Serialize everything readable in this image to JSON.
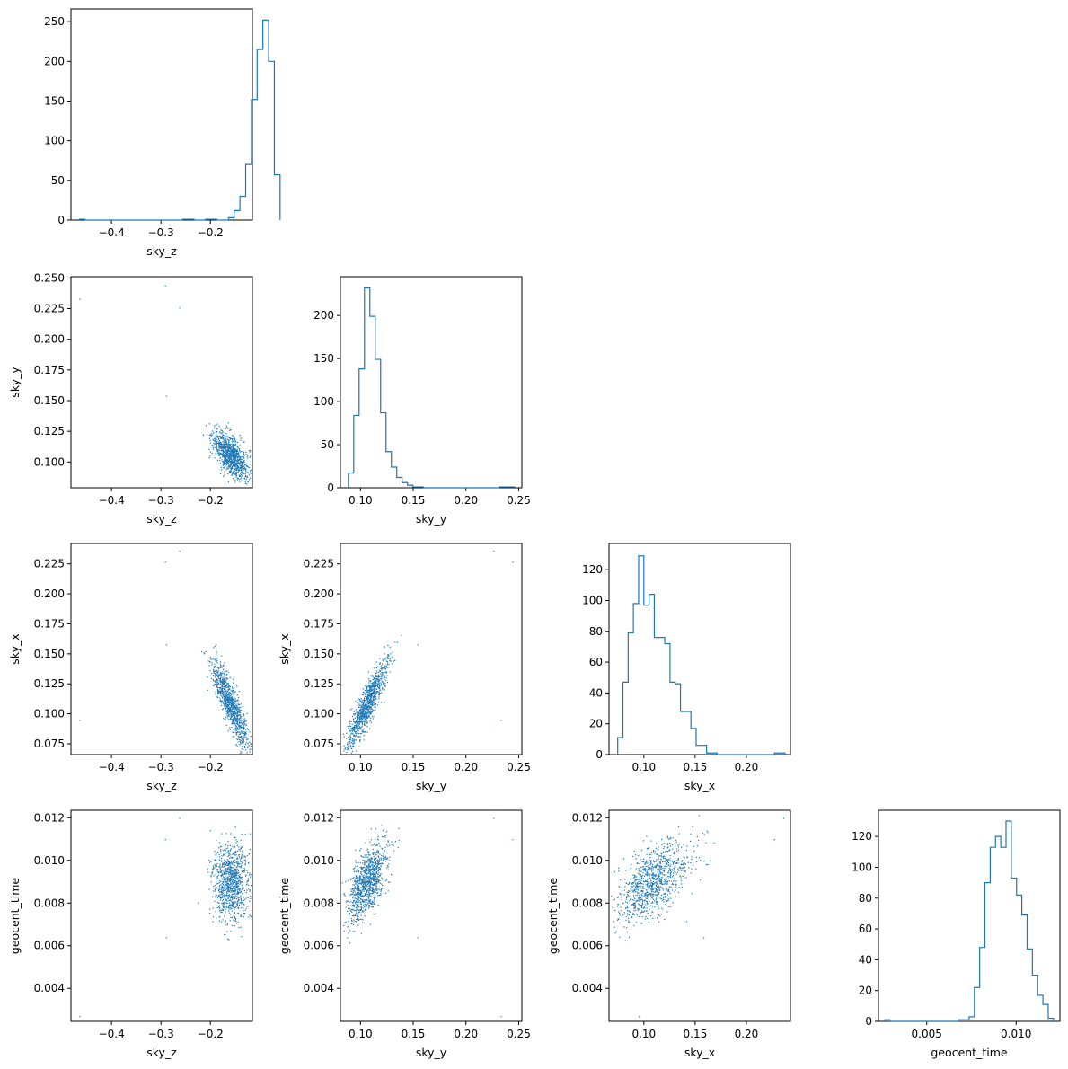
{
  "chart_data": {
    "type": "corner",
    "parameters": [
      "sky_z",
      "sky_y",
      "sky_x",
      "geocent_time"
    ],
    "colors": {
      "series": "#1f77b4"
    },
    "histograms": [
      {
        "param": "sky_z",
        "type": "histogram",
        "xlabel": "sky_z",
        "xlim": [
          -0.482,
          -0.115
        ],
        "ylim": [
          0,
          266
        ],
        "xticks": [
          -0.4,
          -0.3,
          -0.2
        ],
        "xtick_labels": [
          "−0.4",
          "−0.3",
          "−0.2"
        ],
        "yticks": [
          0,
          50,
          100,
          150,
          200,
          250
        ],
        "ytick_labels": [
          "0",
          "50",
          "100",
          "150",
          "200",
          "250"
        ],
        "bin_start": -0.465,
        "bin_width": 0.0116,
        "counts": [
          1,
          0,
          0,
          0,
          0,
          0,
          0,
          0,
          0,
          0,
          0,
          0,
          0,
          0,
          0,
          0,
          0,
          0,
          1,
          1,
          0,
          0,
          1,
          1,
          0,
          0,
          3,
          12,
          30,
          70,
          152,
          215,
          252,
          200,
          57
        ]
      },
      {
        "param": "sky_y",
        "type": "histogram",
        "xlabel": "sky_y",
        "xlim": [
          0.081,
          0.253
        ],
        "ylim": [
          0,
          245
        ],
        "xticks": [
          0.1,
          0.15,
          0.2,
          0.25
        ],
        "xtick_labels": [
          "0.10",
          "0.15",
          "0.20",
          "0.25"
        ],
        "yticks": [
          0,
          50,
          100,
          150,
          200
        ],
        "ytick_labels": [
          "0",
          "50",
          "100",
          "150",
          "200"
        ],
        "bin_start": 0.0885,
        "bin_width": 0.0051,
        "counts": [
          17,
          84,
          138,
          232,
          199,
          149,
          87,
          42,
          24,
          12,
          6,
          3,
          1,
          1,
          0,
          0,
          0,
          0,
          0,
          0,
          0,
          0,
          0,
          0,
          0,
          0,
          0,
          0,
          1,
          1,
          1
        ]
      },
      {
        "param": "sky_x",
        "type": "histogram",
        "xlabel": "sky_x",
        "xlim": [
          0.066,
          0.243
        ],
        "ylim": [
          0,
          137
        ],
        "xticks": [
          0.1,
          0.15,
          0.2
        ],
        "xtick_labels": [
          "0.10",
          "0.15",
          "0.20"
        ],
        "yticks": [
          0,
          20,
          40,
          60,
          80,
          100,
          120
        ],
        "ytick_labels": [
          "0",
          "20",
          "40",
          "60",
          "80",
          "100",
          "120"
        ],
        "bin_start": 0.0745,
        "bin_width": 0.0051,
        "counts": [
          11,
          47,
          79,
          98,
          129,
          97,
          104,
          76,
          76,
          72,
          47,
          46,
          28,
          28,
          17,
          6,
          6,
          1,
          1,
          0,
          0,
          0,
          0,
          0,
          0,
          0,
          0,
          0,
          0,
          0,
          1,
          1
        ]
      },
      {
        "param": "geocent_time",
        "type": "histogram",
        "xlabel": "geocent_time",
        "xlim": [
          0.0023,
          0.01245
        ],
        "ylim": [
          0,
          137
        ],
        "xticks": [
          0.005,
          0.01
        ],
        "xtick_labels": [
          "0.005",
          "0.010"
        ],
        "yticks": [
          0,
          20,
          40,
          60,
          80,
          100,
          120
        ],
        "ytick_labels": [
          "0",
          "20",
          "40",
          "60",
          "80",
          "100",
          "120"
        ],
        "bin_start": 0.00265,
        "bin_width": 0.000295,
        "counts": [
          1,
          0,
          0,
          0,
          0,
          0,
          0,
          0,
          0,
          0,
          0,
          0,
          0,
          0,
          1,
          1,
          3,
          22,
          48,
          90,
          113,
          120,
          113,
          130,
          93,
          82,
          69,
          47,
          30,
          17,
          11,
          2
        ]
      }
    ],
    "scatters": [
      {
        "type": "scatter",
        "x_param": "sky_z",
        "y_param": "sky_y",
        "xlabel": "sky_z",
        "ylabel": "sky_y",
        "xlim": [
          -0.482,
          -0.115
        ],
        "ylim": [
          0.079,
          0.251
        ],
        "xticks": [
          -0.4,
          -0.3,
          -0.2
        ],
        "xtick_labels": [
          "−0.4",
          "−0.3",
          "−0.2"
        ],
        "yticks": [
          0.1,
          0.125,
          0.15,
          0.175,
          0.2,
          0.225,
          0.25
        ],
        "ytick_labels": [
          "0.100",
          "0.125",
          "0.150",
          "0.175",
          "0.200",
          "0.225",
          "0.250"
        ],
        "cluster": {
          "x_mean": -0.16,
          "x_sd": 0.018,
          "y_mean": 0.106,
          "y_sd": 0.0095,
          "rho": -0.6,
          "n": 1000
        },
        "outliers": [
          [
            -0.465,
            0.233
          ],
          [
            -0.292,
            0.244
          ],
          [
            -0.263,
            0.226
          ],
          [
            -0.29,
            0.154
          ]
        ]
      },
      {
        "type": "scatter",
        "x_param": "sky_z",
        "y_param": "sky_x",
        "xlabel": "sky_z",
        "ylabel": "sky_x",
        "xlim": [
          -0.482,
          -0.115
        ],
        "ylim": [
          0.066,
          0.242
        ],
        "xticks": [
          -0.4,
          -0.3,
          -0.2
        ],
        "xtick_labels": [
          "−0.4",
          "−0.3",
          "−0.2"
        ],
        "yticks": [
          0.075,
          0.1,
          0.125,
          0.15,
          0.175,
          0.2,
          0.225
        ],
        "ytick_labels": [
          "0.075",
          "0.100",
          "0.125",
          "0.150",
          "0.175",
          "0.200",
          "0.225"
        ],
        "cluster": {
          "x_mean": -0.16,
          "x_sd": 0.018,
          "y_mean": 0.108,
          "y_sd": 0.018,
          "rho": -0.85,
          "n": 1000
        },
        "outliers": [
          [
            -0.465,
            0.095
          ],
          [
            -0.292,
            0.227
          ],
          [
            -0.263,
            0.236
          ],
          [
            -0.29,
            0.158
          ]
        ]
      },
      {
        "type": "scatter",
        "x_param": "sky_y",
        "y_param": "sky_x",
        "xlabel": "sky_y",
        "ylabel": "sky_x",
        "xlim": [
          0.081,
          0.253
        ],
        "ylim": [
          0.066,
          0.242
        ],
        "xticks": [
          0.1,
          0.15,
          0.2,
          0.25
        ],
        "xtick_labels": [
          "0.10",
          "0.15",
          "0.20",
          "0.25"
        ],
        "yticks": [
          0.075,
          0.1,
          0.125,
          0.15,
          0.175,
          0.2,
          0.225
        ],
        "ytick_labels": [
          "0.075",
          "0.100",
          "0.125",
          "0.150",
          "0.175",
          "0.200",
          "0.225"
        ],
        "cluster": {
          "x_mean": 0.106,
          "x_sd": 0.0095,
          "y_mean": 0.108,
          "y_sd": 0.018,
          "rho": 0.88,
          "n": 1000
        },
        "outliers": [
          [
            0.233,
            0.095
          ],
          [
            0.244,
            0.227
          ],
          [
            0.226,
            0.236
          ],
          [
            0.154,
            0.158
          ]
        ]
      },
      {
        "type": "scatter",
        "x_param": "sky_z",
        "y_param": "geocent_time",
        "xlabel": "sky_z",
        "ylabel": "geocent_time",
        "xlim": [
          -0.482,
          -0.115
        ],
        "ylim": [
          0.00245,
          0.01235
        ],
        "xticks": [
          -0.4,
          -0.3,
          -0.2
        ],
        "xtick_labels": [
          "−0.4",
          "−0.3",
          "−0.2"
        ],
        "yticks": [
          0.004,
          0.006,
          0.008,
          0.01,
          0.012
        ],
        "ytick_labels": [
          "0.004",
          "0.006",
          "0.008",
          "0.010",
          "0.012"
        ],
        "cluster": {
          "x_mean": -0.16,
          "x_sd": 0.018,
          "y_mean": 0.009,
          "y_sd": 0.0009,
          "rho": 0.1,
          "n": 1000
        },
        "outliers": [
          [
            -0.465,
            0.0027
          ],
          [
            -0.292,
            0.011
          ],
          [
            -0.263,
            0.012
          ],
          [
            -0.29,
            0.0064
          ]
        ]
      },
      {
        "type": "scatter",
        "x_param": "sky_y",
        "y_param": "geocent_time",
        "xlabel": "sky_y",
        "ylabel": "geocent_time",
        "xlim": [
          0.081,
          0.253
        ],
        "ylim": [
          0.00245,
          0.01235
        ],
        "xticks": [
          0.1,
          0.15,
          0.2,
          0.25
        ],
        "xtick_labels": [
          "0.10",
          "0.15",
          "0.20",
          "0.25"
        ],
        "yticks": [
          0.004,
          0.006,
          0.008,
          0.01,
          0.012
        ],
        "ytick_labels": [
          "0.004",
          "0.006",
          "0.008",
          "0.010",
          "0.012"
        ],
        "cluster": {
          "x_mean": 0.106,
          "x_sd": 0.0095,
          "y_mean": 0.009,
          "y_sd": 0.0009,
          "rho": 0.6,
          "n": 1000
        },
        "outliers": [
          [
            0.233,
            0.0027
          ],
          [
            0.244,
            0.011
          ],
          [
            0.226,
            0.012
          ],
          [
            0.154,
            0.0064
          ]
        ]
      },
      {
        "type": "scatter",
        "x_param": "sky_x",
        "y_param": "geocent_time",
        "xlabel": "sky_x",
        "ylabel": "geocent_time",
        "xlim": [
          0.066,
          0.243
        ],
        "ylim": [
          0.00245,
          0.01235
        ],
        "xticks": [
          0.1,
          0.15,
          0.2
        ],
        "xtick_labels": [
          "0.10",
          "0.15",
          "0.20"
        ],
        "yticks": [
          0.004,
          0.006,
          0.008,
          0.01,
          0.012
        ],
        "ytick_labels": [
          "0.004",
          "0.006",
          "0.008",
          "0.010",
          "0.012"
        ],
        "cluster": {
          "x_mean": 0.108,
          "x_sd": 0.018,
          "y_mean": 0.009,
          "y_sd": 0.0009,
          "rho": 0.55,
          "n": 1000
        },
        "outliers": [
          [
            0.095,
            0.0027
          ],
          [
            0.227,
            0.011
          ],
          [
            0.236,
            0.012
          ],
          [
            0.158,
            0.0064
          ]
        ]
      }
    ]
  }
}
